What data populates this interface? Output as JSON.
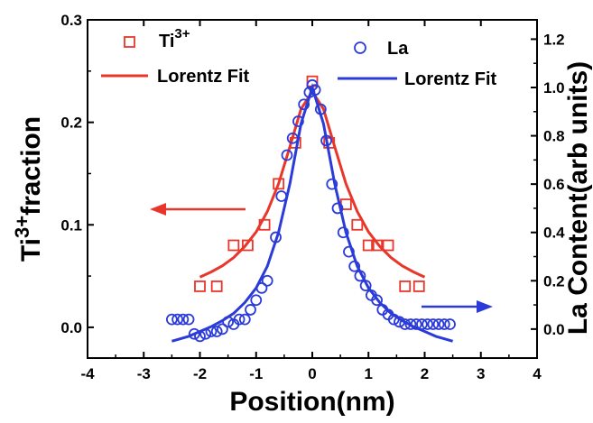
{
  "chart_data": {
    "type": "scatter",
    "xlabel": "Position(nm)",
    "ylabel_left": {
      "base": "Ti",
      "sup": "3+",
      "rest": "fraction"
    },
    "ylabel_right": "La Content(arb units)",
    "xlim": [
      -4,
      4
    ],
    "ylim_left": [
      -0.03,
      0.3
    ],
    "ylim_right": [
      -0.12,
      1.28
    ],
    "x_ticks": [
      -4,
      -3,
      -2,
      -1,
      0,
      1,
      2,
      3,
      4
    ],
    "x_tick_labels": [
      "-4",
      "-3",
      "-2",
      "-1",
      "0",
      "1",
      "2",
      "3",
      "4"
    ],
    "y_left_ticks": [
      0.0,
      0.1,
      0.2,
      0.3
    ],
    "y_left_tick_labels": [
      "0.0",
      "0.1",
      "0.2",
      "0.3"
    ],
    "y_right_ticks": [
      0.0,
      0.2,
      0.4,
      0.6,
      0.8,
      1.0,
      1.2
    ],
    "y_right_tick_labels": [
      "0.0",
      "0.2",
      "0.4",
      "0.6",
      "0.8",
      "1.0",
      "1.2"
    ],
    "grid": false,
    "legend": [
      {
        "label_base": "Ti",
        "label_sup": "3+",
        "marker": "square",
        "color": "#e8372a"
      },
      {
        "label": "Lorentz Fit",
        "marker": "line",
        "color": "#e8372a"
      },
      {
        "label": "La",
        "marker": "circle",
        "color": "#2b3bd9"
      },
      {
        "label": "Lorentz Fit",
        "marker": "line",
        "color": "#2b3bd9"
      }
    ],
    "legend_position": "top",
    "arrows": [
      {
        "axis": "left",
        "color": "#e8372a"
      },
      {
        "axis": "right",
        "color": "#2b3bd9"
      }
    ],
    "series": [
      {
        "name": "Ti3+",
        "axis": "left",
        "marker": "square",
        "color": "#e8372a",
        "x": [
          -2.0,
          -1.7,
          -1.4,
          -1.15,
          -0.85,
          -0.6,
          -0.3,
          0.0,
          0.3,
          0.6,
          0.8,
          1.0,
          1.15,
          1.35,
          1.65,
          1.9
        ],
        "y": [
          0.04,
          0.04,
          0.08,
          0.08,
          0.1,
          0.14,
          0.18,
          0.24,
          0.18,
          0.12,
          0.1,
          0.08,
          0.08,
          0.08,
          0.04,
          0.04
        ]
      },
      {
        "name": "Ti3+ Lorentz Fit",
        "axis": "left",
        "type": "line",
        "color": "#e8372a",
        "x": [
          -2.0,
          -1.8,
          -1.6,
          -1.4,
          -1.2,
          -1.0,
          -0.8,
          -0.6,
          -0.4,
          -0.2,
          0.0,
          0.2,
          0.4,
          0.6,
          0.8,
          1.0,
          1.2,
          1.4,
          1.6,
          1.8,
          2.0
        ],
        "y": [
          0.049,
          0.054,
          0.06,
          0.068,
          0.079,
          0.093,
          0.113,
          0.14,
          0.176,
          0.213,
          0.23,
          0.213,
          0.176,
          0.14,
          0.113,
          0.093,
          0.079,
          0.068,
          0.06,
          0.054,
          0.049
        ]
      },
      {
        "name": "La",
        "axis": "right",
        "marker": "circle",
        "color": "#2b3bd9",
        "x": [
          -2.5,
          -2.4,
          -2.3,
          -2.2,
          -2.1,
          -2.0,
          -1.9,
          -1.8,
          -1.7,
          -1.6,
          -1.5,
          -1.4,
          -1.3,
          -1.2,
          -1.1,
          -1.0,
          -0.9,
          -0.8,
          -0.65,
          -0.55,
          -0.45,
          -0.35,
          -0.25,
          -0.15,
          -0.05,
          0.0,
          0.05,
          0.15,
          0.25,
          0.35,
          0.45,
          0.55,
          0.65,
          0.75,
          0.85,
          0.95,
          1.05,
          1.15,
          1.25,
          1.35,
          1.45,
          1.55,
          1.65,
          1.75,
          1.85,
          1.95,
          2.05,
          2.15,
          2.25,
          2.35,
          2.45
        ],
        "y": [
          0.04,
          0.04,
          0.04,
          0.04,
          -0.02,
          -0.03,
          -0.02,
          -0.01,
          -0.01,
          0.0,
          0.03,
          0.02,
          0.04,
          0.04,
          0.08,
          0.12,
          0.17,
          0.2,
          0.38,
          0.55,
          0.72,
          0.79,
          0.86,
          0.93,
          0.98,
          1.01,
          0.99,
          0.91,
          0.78,
          0.6,
          0.5,
          0.4,
          0.32,
          0.26,
          0.22,
          0.18,
          0.14,
          0.12,
          0.08,
          0.06,
          0.04,
          0.03,
          0.02,
          0.02,
          0.02,
          0.02,
          0.02,
          0.02,
          0.02,
          0.02,
          0.02
        ]
      },
      {
        "name": "La Lorentz Fit",
        "axis": "right",
        "type": "line",
        "color": "#2b3bd9",
        "x": [
          -2.5,
          -2.2,
          -2.0,
          -1.8,
          -1.6,
          -1.4,
          -1.2,
          -1.0,
          -0.8,
          -0.6,
          -0.4,
          -0.2,
          0.0,
          0.2,
          0.4,
          0.6,
          0.8,
          1.0,
          1.2,
          1.4,
          1.6,
          1.8,
          2.0,
          2.2,
          2.5
        ],
        "y": [
          -0.05,
          -0.03,
          -0.01,
          0.01,
          0.035,
          0.065,
          0.11,
          0.17,
          0.26,
          0.4,
          0.6,
          0.85,
          1.0,
          0.85,
          0.6,
          0.4,
          0.26,
          0.17,
          0.11,
          0.065,
          0.035,
          0.01,
          -0.01,
          -0.03,
          -0.05
        ]
      }
    ]
  }
}
